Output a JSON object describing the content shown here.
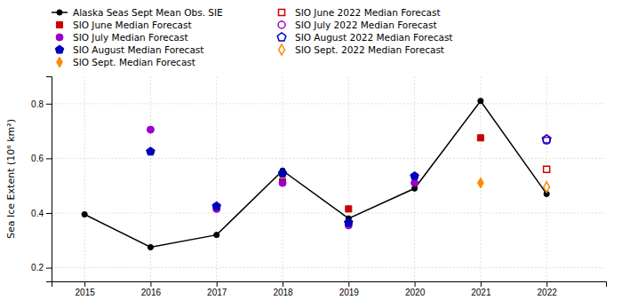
{
  "chart_data": {
    "type": "line",
    "y_label": "Sea Ice Extent (10⁶ km²)",
    "xlim": [
      2014.5,
      2022.9
    ],
    "xticks": [
      2015,
      2016,
      2017,
      2018,
      2019,
      2020,
      2021,
      2022
    ],
    "ylim": [
      0.15,
      0.9
    ],
    "yticks": [
      0.2,
      0.4,
      0.6,
      0.8
    ],
    "grid": true,
    "series": [
      {
        "name": "Alaska Seas Sept Mean Obs. SIE",
        "type": "line",
        "marker": "circle",
        "line_style": "solid",
        "color": "#000000",
        "x": [
          2015,
          2016,
          2017,
          2018,
          2019,
          2020,
          2021,
          2022
        ],
        "values": [
          0.395,
          0.275,
          0.32,
          0.555,
          0.38,
          0.49,
          0.81,
          0.47
        ]
      },
      {
        "name": "SIO June Median Forecast",
        "type": "scatter",
        "marker": "square",
        "color": "#cc0000",
        "x": [
          2018,
          2019,
          2021
        ],
        "values": [
          0.515,
          0.415,
          0.675
        ]
      },
      {
        "name": "SIO July Median Forecast",
        "type": "scatter",
        "marker": "circle",
        "color": "#9900cc",
        "x": [
          2016,
          2017,
          2018,
          2019,
          2020
        ],
        "values": [
          0.705,
          0.415,
          0.51,
          0.355,
          0.51
        ]
      },
      {
        "name": "SIO August Median Forecast",
        "type": "scatter",
        "marker": "pentagon",
        "color": "#0000bb",
        "x": [
          2016,
          2017,
          2018,
          2019,
          2020
        ],
        "values": [
          0.625,
          0.425,
          0.545,
          0.365,
          0.535
        ]
      },
      {
        "name": "SIO Sept. Median Forecast",
        "type": "scatter",
        "marker": "diamond",
        "color": "#ff8800",
        "x": [
          2021
        ],
        "values": [
          0.51
        ]
      },
      {
        "name": "SIO June 2022 Median Forecast",
        "type": "scatter",
        "marker": "open-square",
        "color": "#cc0000",
        "x": [
          2022
        ],
        "values": [
          0.56
        ]
      },
      {
        "name": "SIO July 2022 Median Forecast",
        "type": "scatter",
        "marker": "open-circle",
        "color": "#9900cc",
        "x": [
          2022
        ],
        "values": [
          0.665
        ]
      },
      {
        "name": "SIO August 2022 Median Forecast",
        "type": "scatter",
        "marker": "open-pentagon",
        "color": "#0000bb",
        "x": [
          2022
        ],
        "values": [
          0.67
        ]
      },
      {
        "name": "SIO Sept. 2022 Median Forecast",
        "type": "scatter",
        "marker": "open-diamond",
        "color": "#ff8800",
        "x": [
          2022
        ],
        "values": [
          0.495
        ]
      }
    ]
  }
}
